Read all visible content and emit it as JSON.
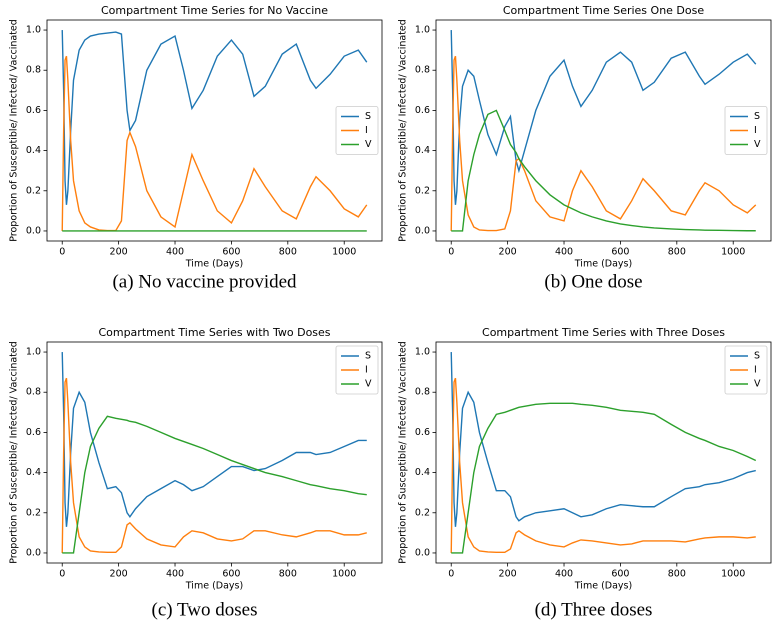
{
  "chart_data": [
    {
      "type": "line",
      "title": "Compartment Time Series for No Vaccine",
      "caption": "(a) No vaccine provided",
      "xlabel": "Time (Days)",
      "ylabel": "Proportion of Susceptible/ Infected/ Vaccinated",
      "legend": "center right",
      "xlim": [
        -54,
        1134
      ],
      "xticks": [
        0,
        200,
        400,
        600,
        800,
        1000
      ],
      "ylim": [
        -0.05,
        1.05
      ],
      "yticks": [
        {
          "value": 0,
          "label": "0.0"
        },
        0.2,
        0.4,
        0.6,
        0.8,
        {
          "value": 1,
          "label": "1.0"
        }
      ],
      "x": [
        0,
        5,
        10,
        15,
        20,
        30,
        40,
        60,
        80,
        100,
        130,
        160,
        190,
        210,
        230,
        240,
        260,
        300,
        350,
        400,
        430,
        460,
        500,
        550,
        600,
        640,
        680,
        720,
        780,
        830,
        880,
        900,
        950,
        1000,
        1050,
        1080
      ],
      "series": [
        {
          "name": "S",
          "color": "#1f77b4",
          "values": [
            1.0,
            0.7,
            0.25,
            0.13,
            0.2,
            0.5,
            0.75,
            0.9,
            0.95,
            0.97,
            0.98,
            0.985,
            0.99,
            0.98,
            0.6,
            0.5,
            0.55,
            0.8,
            0.93,
            0.97,
            0.8,
            0.61,
            0.7,
            0.87,
            0.95,
            0.88,
            0.67,
            0.72,
            0.88,
            0.93,
            0.75,
            0.71,
            0.78,
            0.87,
            0.9,
            0.84
          ]
        },
        {
          "name": "I",
          "color": "#ff7f0e",
          "values": [
            0,
            0.5,
            0.85,
            0.87,
            0.75,
            0.45,
            0.25,
            0.1,
            0.04,
            0.02,
            0.005,
            0.002,
            0.002,
            0.05,
            0.45,
            0.49,
            0.42,
            0.2,
            0.07,
            0.02,
            0.2,
            0.38,
            0.25,
            0.1,
            0.04,
            0.15,
            0.31,
            0.22,
            0.1,
            0.06,
            0.22,
            0.27,
            0.2,
            0.11,
            0.07,
            0.13
          ]
        },
        {
          "name": "V",
          "color": "#2ca02c",
          "values": [
            0,
            0,
            0,
            0,
            0,
            0,
            0,
            0,
            0,
            0,
            0,
            0,
            0,
            0,
            0,
            0,
            0,
            0,
            0,
            0,
            0,
            0,
            0,
            0,
            0,
            0,
            0,
            0,
            0,
            0,
            0,
            0,
            0,
            0,
            0,
            0
          ]
        }
      ]
    },
    {
      "type": "line",
      "title": "Compartment Time Series One Dose",
      "caption": "(b) One dose",
      "xlabel": "Time (Days)",
      "ylabel": "Proportion of Susceptible/ Infected/ Vaccinated",
      "legend": "center right",
      "xlim": [
        -54,
        1134
      ],
      "xticks": [
        0,
        200,
        400,
        600,
        800,
        1000
      ],
      "ylim": [
        -0.05,
        1.05
      ],
      "yticks": [
        {
          "value": 0,
          "label": "0.0"
        },
        0.2,
        0.4,
        0.6,
        0.8,
        {
          "value": 1,
          "label": "1.0"
        }
      ],
      "x": [
        0,
        5,
        10,
        15,
        20,
        30,
        40,
        60,
        80,
        100,
        130,
        160,
        190,
        210,
        230,
        240,
        260,
        300,
        350,
        400,
        430,
        460,
        500,
        550,
        600,
        640,
        680,
        720,
        780,
        830,
        880,
        900,
        950,
        1000,
        1050,
        1080
      ],
      "series": [
        {
          "name": "S",
          "color": "#1f77b4",
          "values": [
            1.0,
            0.7,
            0.25,
            0.13,
            0.2,
            0.55,
            0.72,
            0.8,
            0.77,
            0.65,
            0.48,
            0.38,
            0.52,
            0.57,
            0.35,
            0.3,
            0.4,
            0.6,
            0.77,
            0.85,
            0.72,
            0.62,
            0.7,
            0.84,
            0.89,
            0.84,
            0.7,
            0.74,
            0.86,
            0.89,
            0.77,
            0.73,
            0.78,
            0.84,
            0.88,
            0.83
          ]
        },
        {
          "name": "I",
          "color": "#ff7f0e",
          "values": [
            0,
            0.5,
            0.85,
            0.87,
            0.75,
            0.45,
            0.25,
            0.08,
            0.02,
            0.005,
            0.002,
            0.002,
            0.01,
            0.1,
            0.35,
            0.36,
            0.3,
            0.15,
            0.07,
            0.05,
            0.2,
            0.3,
            0.22,
            0.1,
            0.06,
            0.15,
            0.26,
            0.2,
            0.1,
            0.08,
            0.2,
            0.24,
            0.2,
            0.13,
            0.09,
            0.13
          ]
        },
        {
          "name": "V",
          "color": "#2ca02c",
          "values": [
            0,
            0,
            0,
            0,
            0,
            0,
            0,
            0.25,
            0.38,
            0.48,
            0.58,
            0.6,
            0.5,
            0.43,
            0.39,
            0.36,
            0.32,
            0.25,
            0.18,
            0.13,
            0.11,
            0.09,
            0.07,
            0.05,
            0.035,
            0.027,
            0.02,
            0.015,
            0.01,
            0.007,
            0.005,
            0.004,
            0.003,
            0.002,
            0.001,
            0.001
          ]
        }
      ]
    },
    {
      "type": "line",
      "title": "Compartment Time Series with Two Doses",
      "caption": "(c) Two doses",
      "xlabel": "Time (Days)",
      "ylabel": "Proportion of Susceptible/ Infected/ Vaccinated",
      "legend": "upper right",
      "xlim": [
        -54,
        1134
      ],
      "xticks": [
        0,
        200,
        400,
        600,
        800,
        1000
      ],
      "ylim": [
        -0.05,
        1.05
      ],
      "yticks": [
        {
          "value": 0,
          "label": "0.0"
        },
        0.2,
        0.4,
        0.6,
        0.8,
        {
          "value": 1,
          "label": "1.0"
        }
      ],
      "x": [
        0,
        5,
        10,
        15,
        20,
        30,
        40,
        60,
        80,
        100,
        130,
        160,
        190,
        210,
        230,
        240,
        260,
        300,
        350,
        400,
        430,
        460,
        500,
        550,
        600,
        640,
        680,
        720,
        780,
        830,
        880,
        900,
        950,
        1000,
        1050,
        1080
      ],
      "series": [
        {
          "name": "S",
          "color": "#1f77b4",
          "values": [
            1.0,
            0.7,
            0.25,
            0.13,
            0.2,
            0.5,
            0.72,
            0.8,
            0.75,
            0.6,
            0.45,
            0.32,
            0.33,
            0.3,
            0.2,
            0.18,
            0.22,
            0.28,
            0.32,
            0.36,
            0.34,
            0.31,
            0.33,
            0.38,
            0.43,
            0.43,
            0.41,
            0.42,
            0.46,
            0.5,
            0.5,
            0.49,
            0.5,
            0.53,
            0.56,
            0.56
          ]
        },
        {
          "name": "I",
          "color": "#ff7f0e",
          "values": [
            0,
            0.5,
            0.85,
            0.87,
            0.75,
            0.45,
            0.25,
            0.08,
            0.03,
            0.01,
            0.005,
            0.003,
            0.003,
            0.03,
            0.14,
            0.15,
            0.12,
            0.07,
            0.04,
            0.03,
            0.08,
            0.11,
            0.1,
            0.07,
            0.06,
            0.07,
            0.11,
            0.11,
            0.09,
            0.08,
            0.1,
            0.11,
            0.11,
            0.09,
            0.09,
            0.1
          ]
        },
        {
          "name": "V",
          "color": "#2ca02c",
          "values": [
            0,
            0,
            0,
            0,
            0,
            0,
            0,
            0.2,
            0.4,
            0.53,
            0.62,
            0.68,
            0.67,
            0.665,
            0.66,
            0.655,
            0.65,
            0.63,
            0.6,
            0.57,
            0.555,
            0.54,
            0.52,
            0.49,
            0.46,
            0.44,
            0.42,
            0.4,
            0.38,
            0.36,
            0.34,
            0.335,
            0.32,
            0.31,
            0.295,
            0.29
          ]
        }
      ]
    },
    {
      "type": "line",
      "title": "Compartment Time Series with Three Doses",
      "caption": "(d) Three doses",
      "xlabel": "Time (Days)",
      "ylabel": "Proportion of Susceptible/ Infected/ Vaccinated",
      "legend": "upper right",
      "xlim": [
        -54,
        1134
      ],
      "xticks": [
        0,
        200,
        400,
        600,
        800,
        1000
      ],
      "ylim": [
        -0.05,
        1.05
      ],
      "yticks": [
        {
          "value": 0,
          "label": "0.0"
        },
        0.2,
        0.4,
        0.6,
        0.8,
        {
          "value": 1,
          "label": "1.0"
        }
      ],
      "x": [
        0,
        5,
        10,
        15,
        20,
        30,
        40,
        60,
        80,
        100,
        130,
        160,
        190,
        210,
        230,
        240,
        260,
        300,
        350,
        400,
        430,
        460,
        500,
        550,
        600,
        640,
        680,
        720,
        780,
        830,
        880,
        900,
        950,
        1000,
        1050,
        1080
      ],
      "series": [
        {
          "name": "S",
          "color": "#1f77b4",
          "values": [
            1.0,
            0.7,
            0.25,
            0.13,
            0.2,
            0.5,
            0.72,
            0.8,
            0.75,
            0.6,
            0.45,
            0.31,
            0.31,
            0.28,
            0.18,
            0.16,
            0.18,
            0.2,
            0.21,
            0.22,
            0.2,
            0.18,
            0.19,
            0.22,
            0.24,
            0.235,
            0.23,
            0.23,
            0.28,
            0.32,
            0.33,
            0.34,
            0.35,
            0.37,
            0.4,
            0.41
          ]
        },
        {
          "name": "I",
          "color": "#ff7f0e",
          "values": [
            0,
            0.5,
            0.85,
            0.87,
            0.75,
            0.45,
            0.25,
            0.08,
            0.03,
            0.01,
            0.005,
            0.003,
            0.003,
            0.02,
            0.1,
            0.11,
            0.09,
            0.06,
            0.04,
            0.03,
            0.05,
            0.065,
            0.06,
            0.05,
            0.04,
            0.045,
            0.06,
            0.06,
            0.06,
            0.055,
            0.07,
            0.075,
            0.08,
            0.08,
            0.075,
            0.08
          ]
        },
        {
          "name": "V",
          "color": "#2ca02c",
          "values": [
            0,
            0,
            0,
            0,
            0,
            0,
            0,
            0.2,
            0.4,
            0.53,
            0.62,
            0.69,
            0.7,
            0.71,
            0.72,
            0.725,
            0.73,
            0.74,
            0.745,
            0.745,
            0.745,
            0.74,
            0.735,
            0.725,
            0.71,
            0.705,
            0.7,
            0.69,
            0.64,
            0.6,
            0.57,
            0.56,
            0.53,
            0.51,
            0.48,
            0.46
          ]
        }
      ]
    }
  ]
}
